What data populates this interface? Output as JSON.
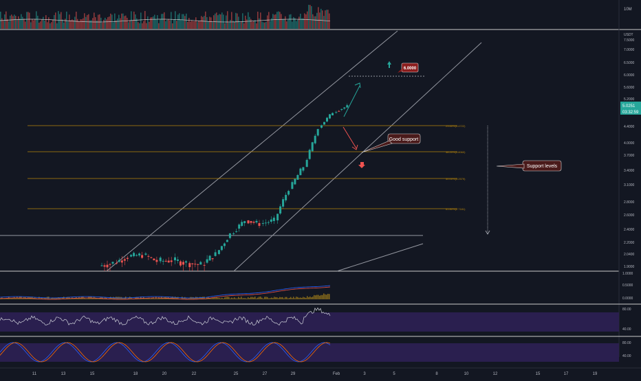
{
  "colors": {
    "bg": "#131722",
    "up": "#26a69a",
    "down": "#ef5350",
    "fib": "#b8860b",
    "rsi_line": "#d1d4dc",
    "stoch_k": "#2962ff",
    "stoch_d": "#ff6d00",
    "band": "#2a1f4f",
    "channel": "#9598a1"
  },
  "price_axis": {
    "unit": "USDT",
    "ticks": [
      "7.5000",
      "7.0000",
      "6.5000",
      "6.0000",
      "5.6000",
      "5.2000",
      "4.4000",
      "4.0000",
      "3.7000",
      "3.4000",
      "3.1000",
      "2.8000",
      "2.6000",
      "2.4000",
      "2.2000",
      "2.0400",
      "1.9000"
    ],
    "current_price": "5.0251",
    "countdown": "03:32:59"
  },
  "volume_axis": {
    "label": "10M"
  },
  "macd_axis": {
    "ticks": [
      "1.0000",
      "0.5000",
      "0.0000"
    ]
  },
  "rsi_axis": {
    "ticks": [
      "80.00",
      "40.00"
    ]
  },
  "stoch_axis": {
    "ticks": [
      "80.00",
      "40.00"
    ]
  },
  "time_axis": {
    "labels": [
      "11",
      "13",
      "15",
      "18",
      "20",
      "22",
      "25",
      "27",
      "29",
      "Feb",
      "3",
      "5",
      "8",
      "10",
      "12",
      "15",
      "17",
      "19"
    ]
  },
  "annotations": {
    "target": "6.0000",
    "good_support": "Good support",
    "support_levels": "Support levels"
  },
  "fib_labels": [
    "23.60%(4.4722)",
    "38.20%(3.8060)",
    "50.00%(3.2579)",
    "61.80%(2.7181)"
  ],
  "chart_data": {
    "type": "candlestick",
    "x": [
      "Jan 16",
      "Jan 17",
      "Jan 18",
      "Jan 19",
      "Jan 20",
      "Jan 21",
      "Jan 22",
      "Jan 23",
      "Jan 24",
      "Jan 25",
      "Jan 26",
      "Jan 27",
      "Jan 28",
      "Jan 29",
      "Jan 30",
      "Jan 31",
      "Feb 1"
    ],
    "series": [
      {
        "name": "price",
        "open": [
          1.92,
          1.95,
          2.02,
          2.04,
          1.97,
          1.98,
          1.95,
          1.93,
          2.05,
          2.35,
          2.55,
          2.5,
          2.55,
          3.05,
          3.45,
          4.4,
          4.85
        ],
        "close": [
          1.95,
          2.02,
          2.04,
          1.97,
          1.98,
          1.95,
          1.93,
          2.05,
          2.35,
          2.55,
          2.5,
          2.55,
          3.05,
          3.45,
          4.4,
          4.85,
          5.0251
        ]
      }
    ],
    "fibonacci": [
      {
        "level": "23.60%",
        "price": 4.4722
      },
      {
        "level": "38.20%",
        "price": 3.806
      },
      {
        "level": "50.00%",
        "price": 3.2579
      },
      {
        "level": "61.80%",
        "price": 2.7181
      }
    ],
    "target_price": 6.0,
    "support_price": 2.3,
    "ylim": [
      1.9,
      7.5
    ]
  }
}
